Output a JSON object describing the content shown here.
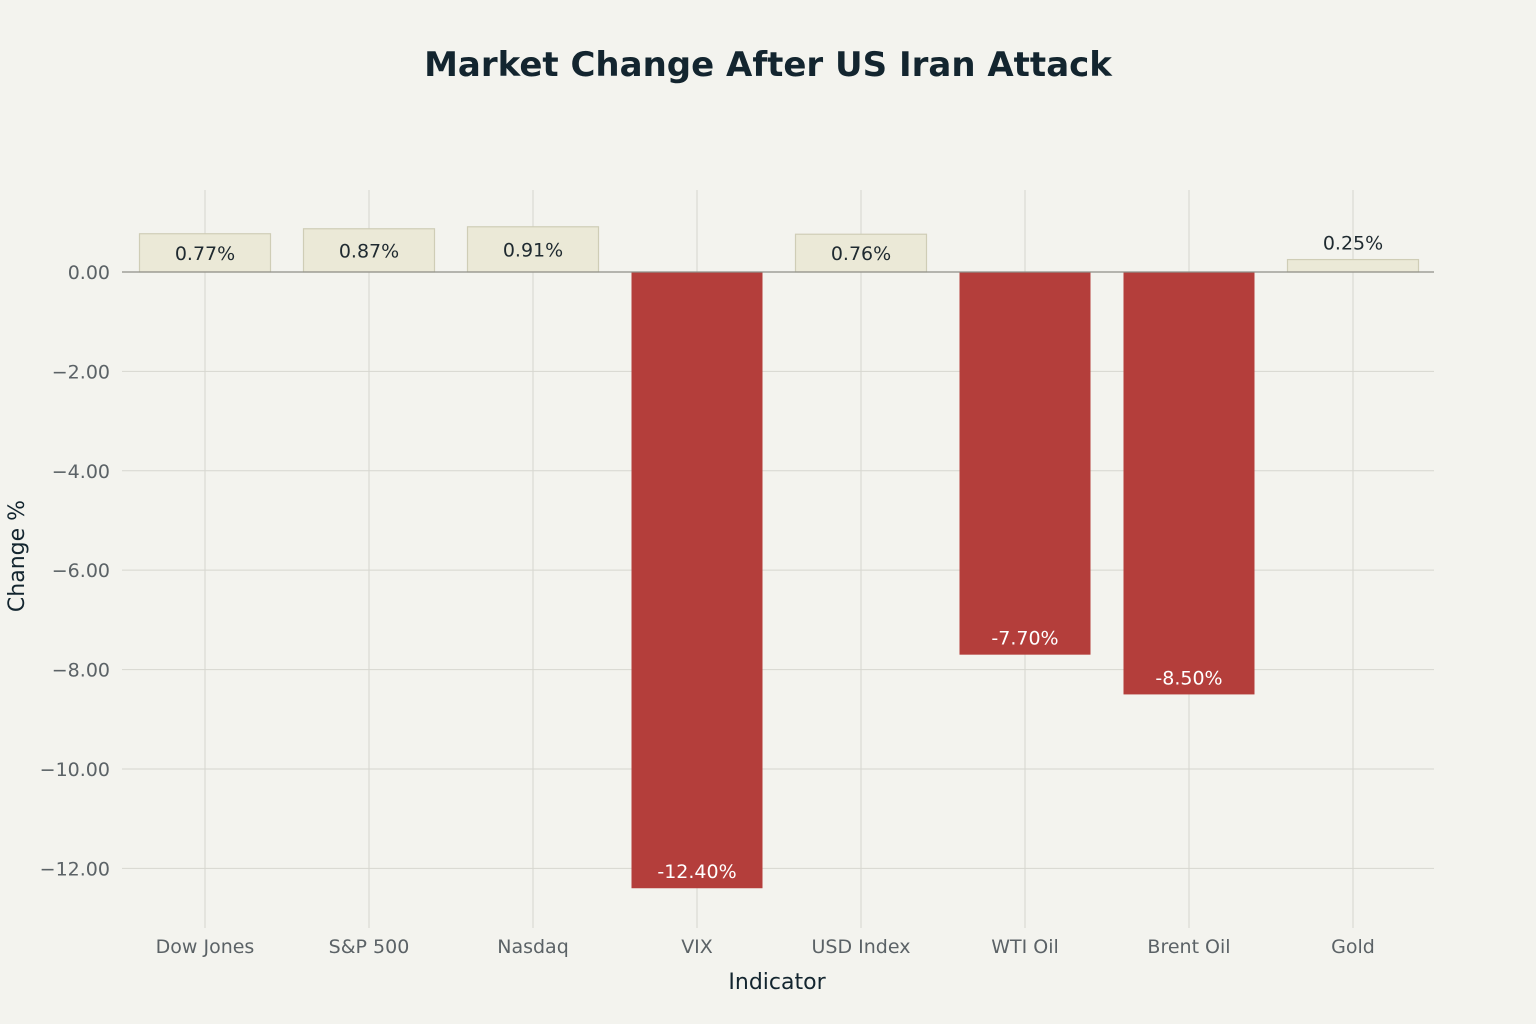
{
  "chart_data": {
    "type": "bar",
    "title": "Market Change After US Iran Attack",
    "xlabel": "Indicator",
    "ylabel": "Change %",
    "categories": [
      "Dow Jones",
      "S&P 500",
      "Nasdaq",
      "VIX",
      "USD Index",
      "WTI Oil",
      "Brent Oil",
      "Gold"
    ],
    "values": [
      0.77,
      0.87,
      0.91,
      -12.4,
      0.76,
      -7.7,
      -8.5,
      0.25
    ],
    "data_labels": [
      "0.77%",
      "0.87%",
      "0.91%",
      "-12.40%",
      "0.76%",
      "-7.70%",
      "-8.50%",
      "0.25%"
    ],
    "ylim": [
      -13.2,
      1.65
    ],
    "yticks": [
      0,
      -2,
      -4,
      -6,
      -8,
      -10,
      -12
    ],
    "ytick_labels": [
      "0.00",
      "−2.00",
      "−4.00",
      "−6.00",
      "−8.00",
      "−10.00",
      "−12.00"
    ],
    "grid": true,
    "legend": "none",
    "colors": {
      "positive_fill": "#ebe9d7",
      "positive_stroke": "#cfcdb6",
      "negative_fill": "#b43e3b",
      "positive_label": "#1f2a30",
      "negative_label": "#ffffff",
      "background": "#f3f3ee"
    }
  }
}
